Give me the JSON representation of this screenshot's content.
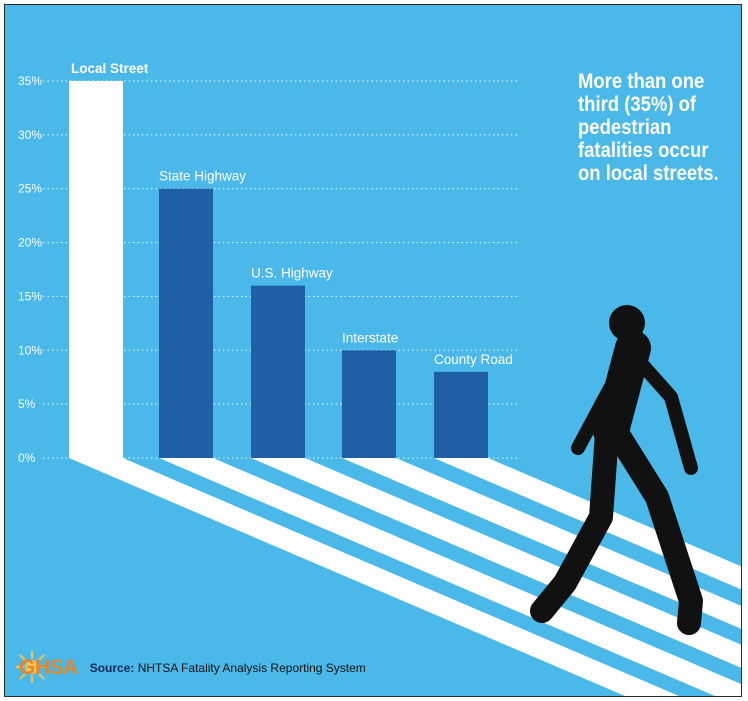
{
  "chart_data": {
    "type": "bar",
    "categories": [
      "Local Street",
      "State Highway",
      "U.S. Highway",
      "Interstate",
      "County Road"
    ],
    "values": [
      35,
      25,
      16,
      10,
      8
    ],
    "ylim": [
      0,
      35
    ],
    "yticks": [
      "0%",
      "5%",
      "10%",
      "15%",
      "20%",
      "25%",
      "30%",
      "35%"
    ],
    "ytick_values": [
      0,
      5,
      10,
      15,
      20,
      25,
      30,
      35
    ],
    "grid": "dotted horizontal",
    "colors": {
      "background": "#4ab8e8",
      "highlight_bar": "#ffffff",
      "bar": "#1f5fa6"
    },
    "title": "",
    "xlabel": "",
    "ylabel": ""
  },
  "headline": "More than one third (35%) of pedestrian fatalities occur on local streets.",
  "logo": {
    "text": "GHSA"
  },
  "source": {
    "label": "Source:",
    "text": "NHTSA Fatality Analysis Reporting System"
  },
  "illustration": {
    "icon": "pedestrian-walking-icon",
    "crosswalk": "crosswalk-stripes"
  }
}
